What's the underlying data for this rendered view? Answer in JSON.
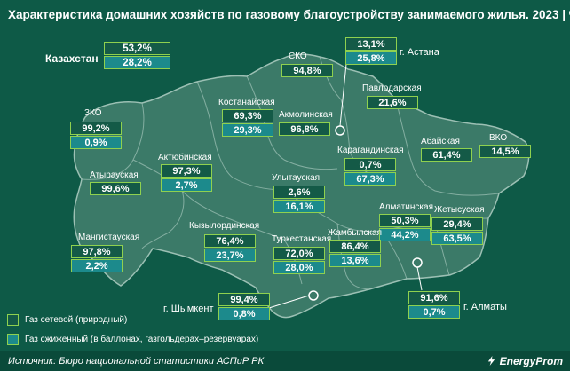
{
  "title": "Характеристика домашних хозяйств по газовому благоустройству занимаемого жилья. 2023",
  "title_sep": "|",
  "unit": "%",
  "colors": {
    "background": "#0e5a47",
    "map_fill": "#3b7a68",
    "map_border": "#9cc0b4",
    "box_border": "#8fd14f",
    "natural_gas": "#145a47",
    "liquefied_gas": "#1c8a8c"
  },
  "kazakhstan": {
    "label": "Казахстан",
    "natural": "53,2%",
    "liquefied": "28,2%"
  },
  "regions": [
    {
      "key": "astana",
      "label": "г. Астана",
      "natural": "13,1%",
      "liquefied": "25,8%"
    },
    {
      "key": "sko",
      "label": "СКО",
      "natural": "94,8%"
    },
    {
      "key": "pavlodar",
      "label": "Павлодарская",
      "natural": "21,6%"
    },
    {
      "key": "kostanay",
      "label": "Костанайская",
      "natural": "69,3%",
      "liquefied": "29,3%"
    },
    {
      "key": "akmola",
      "label": "Акмолинская",
      "natural": "96,8%"
    },
    {
      "key": "zko",
      "label": "ЗКО",
      "natural": "99,2%",
      "liquefied": "0,9%"
    },
    {
      "key": "abay",
      "label": "Абайская",
      "natural": "61,4%"
    },
    {
      "key": "vko",
      "label": "ВКО",
      "natural": "14,5%"
    },
    {
      "key": "aktobe",
      "label": "Актюбинская",
      "natural": "97,3%",
      "liquefied": "2,7%"
    },
    {
      "key": "atyrau",
      "label": "Атырауская",
      "natural": "99,6%"
    },
    {
      "key": "karaganda",
      "label": "Карагандинская",
      "natural": "0,7%",
      "liquefied": "67,3%"
    },
    {
      "key": "ulytau",
      "label": "Улытауская",
      "natural": "2,6%",
      "liquefied": "16,1%"
    },
    {
      "key": "almaty_reg",
      "label": "Алматинская",
      "natural": "50,3%",
      "liquefied": "44,2%"
    },
    {
      "key": "zhetysu",
      "label": "Жетысуская",
      "natural": "29,4%",
      "liquefied": "63,5%"
    },
    {
      "key": "mangystau",
      "label": "Мангистауская",
      "natural": "97,8%",
      "liquefied": "2,2%"
    },
    {
      "key": "kyzylorda",
      "label": "Кызылординская",
      "natural": "76,4%",
      "liquefied": "23,7%"
    },
    {
      "key": "turkestan",
      "label": "Туркестанская",
      "natural": "72,0%",
      "liquefied": "28,0%"
    },
    {
      "key": "zhambyl",
      "label": "Жамбылская",
      "natural": "86,4%",
      "liquefied": "13,6%"
    },
    {
      "key": "shymkent",
      "label": "г. Шымкент",
      "natural": "99,4%",
      "liquefied": "0,8%"
    },
    {
      "key": "almaty",
      "label": "г. Алматы",
      "natural": "91,6%",
      "liquefied": "0,7%"
    }
  ],
  "legend": [
    {
      "label": "Газ сетевой (природный)"
    },
    {
      "label": "Газ сжиженный (в баллонах, газгольдерах–резервуарах)"
    }
  ],
  "source": "Источник: Бюро национальной статистики АСПиР РК",
  "brand": "EnergyProm"
}
